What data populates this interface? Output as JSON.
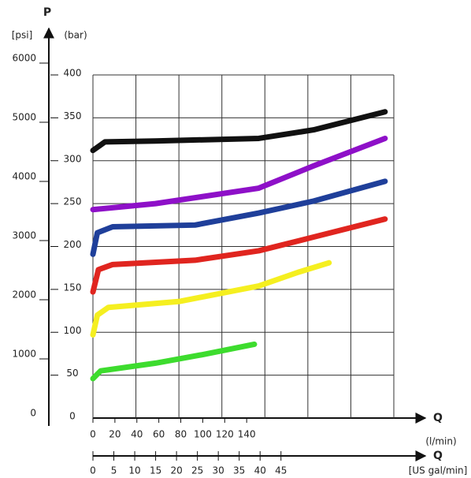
{
  "chart_data": {
    "type": "line",
    "y_axis_title": "P",
    "y_unit_left": "[psi]",
    "y_unit_right": "(bar)",
    "x_axis_title": "Q",
    "x_unit": "(l/min)",
    "x2_axis_title": "Q",
    "x2_unit": "[US gal/min]",
    "ylim": [
      0,
      400
    ],
    "yticks": [
      0,
      50,
      100,
      150,
      200,
      250,
      300,
      350,
      400
    ],
    "y2lim": [
      0,
      5800
    ],
    "y2ticks": [
      0,
      1000,
      2000,
      3000,
      4000,
      5000,
      6000
    ],
    "xlim": [
      0,
      274
    ],
    "xticks": [
      0,
      20,
      40,
      60,
      80,
      100,
      120,
      140
    ],
    "x2lim": [
      0,
      72
    ],
    "x2ticks": [
      0,
      5,
      10,
      15,
      20,
      25,
      30,
      35,
      40,
      45
    ],
    "grid": true,
    "series": [
      {
        "name": "black",
        "color": "#111111",
        "x": [
          0,
          11,
          57,
          151,
          201,
          266
        ],
        "values": [
          312,
          322,
          323,
          326,
          336,
          357
        ]
      },
      {
        "name": "purple",
        "color": "#8e10c8",
        "x": [
          0,
          57,
          151,
          201,
          266
        ],
        "values": [
          243,
          250,
          268,
          294,
          326
        ]
      },
      {
        "name": "blue",
        "color": "#1f3f9a",
        "x": [
          0,
          4,
          18,
          93,
          151,
          201,
          266
        ],
        "values": [
          191,
          216,
          223,
          225,
          239,
          253,
          276
        ]
      },
      {
        "name": "red",
        "color": "#e0251f",
        "x": [
          0,
          5,
          18,
          93,
          151,
          201,
          266
        ],
        "values": [
          147,
          173,
          179,
          184,
          195,
          211,
          232
        ]
      },
      {
        "name": "yellow",
        "color": "#f5ef20",
        "x": [
          0,
          4,
          14,
          79,
          151,
          187,
          215
        ],
        "values": [
          97,
          120,
          129,
          136,
          154,
          170,
          181
        ]
      },
      {
        "name": "green",
        "color": "#3ddc2e",
        "x": [
          0,
          7,
          57,
          100,
          147
        ],
        "values": [
          46,
          55,
          64,
          74,
          86
        ]
      }
    ]
  }
}
